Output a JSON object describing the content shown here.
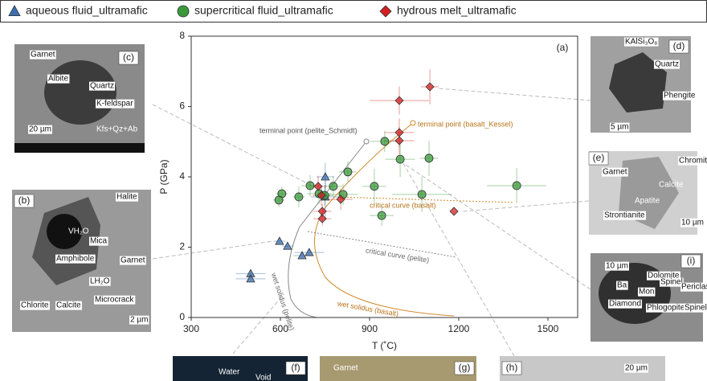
{
  "chart_data": {
    "type": "scatter",
    "xlabel": "T (˚C)",
    "ylabel": "P (GPa)",
    "xlim": [
      300,
      1600
    ],
    "ylim": [
      0,
      8
    ],
    "xticks": [
      300,
      600,
      900,
      1200,
      1500
    ],
    "yticks": [
      0,
      2,
      4,
      6,
      8
    ],
    "annotations": [
      "(a)",
      "terminal point (pelite_Schmidt)",
      "terminal point (basalt_Kessel)",
      "critical curve (basalt)",
      "critical curve (pelite)",
      "wet solidus (pelite)",
      "wet solidus (basalt)"
    ],
    "series": [
      {
        "name": "aqueous fluid_ultramafic",
        "color": "#3a6fb0",
        "marker": "triangle",
        "x": [
          500,
          500,
          597,
          624,
          673,
          697,
          751,
          751
        ],
        "y": [
          1.25,
          1.1,
          2.17,
          2.03,
          1.76,
          1.85,
          3.43,
          4.0
        ],
        "xerr": [
          50,
          50,
          20,
          20,
          30,
          50,
          50,
          30
        ],
        "yerr": [
          0.1,
          0.1,
          0.05,
          0.05,
          0.1,
          0.1,
          0.6,
          0.4
        ]
      },
      {
        "name": "supercritical fluid_ultramafic",
        "color": "#3a9a3a",
        "marker": "circle",
        "x": [
          605,
          595,
          662,
          700,
          730,
          749,
          778,
          811,
          827,
          916,
          941,
          951,
          1003,
          1076,
          1100,
          1395
        ],
        "y": [
          3.52,
          3.34,
          3.43,
          3.75,
          3.52,
          3.47,
          3.73,
          3.5,
          4.14,
          3.73,
          2.9,
          5.01,
          4.5,
          3.5,
          4.53,
          3.75
        ],
        "xerr": [
          20,
          20,
          20,
          30,
          40,
          30,
          30,
          50,
          30,
          40,
          40,
          50,
          50,
          100,
          30,
          100
        ],
        "yerr": [
          0.2,
          0.2,
          0.3,
          0.3,
          0.3,
          0.3,
          0.3,
          0.3,
          0.3,
          0.5,
          0.3,
          0.3,
          0.5,
          0.5,
          0.5,
          0.5
        ]
      },
      {
        "name": "hydrous melt_ultramafic",
        "color": "#d42020",
        "marker": "diamond",
        "x": [
          727,
          738,
          803,
          741,
          741,
          1000,
          1000,
          1000,
          1103,
          1184
        ],
        "y": [
          3.73,
          3.47,
          3.36,
          2.81,
          3.02,
          6.17,
          5.26,
          5.03,
          6.56,
          3.02
        ],
        "xerr": [
          30,
          30,
          40,
          30,
          30,
          100,
          50,
          50,
          30,
          0
        ],
        "yerr": [
          0.3,
          0.3,
          0.3,
          0.2,
          0.2,
          0.4,
          0.4,
          0.4,
          0.5,
          0
        ]
      }
    ]
  },
  "insets": [
    {
      "panel": "(c)",
      "labels": [
        "Garnet",
        "Albite",
        "Quartz",
        "K-feldspar",
        "20 µm",
        "Kfs+Qz+Ab"
      ]
    },
    {
      "panel": "(b)",
      "labels": [
        "Halite",
        "VH₂O",
        "Mica",
        "Amphibole",
        "Garnet",
        "LH₂O",
        "Chlorite",
        "Calcite",
        "Microcrack",
        "2 µm"
      ]
    },
    {
      "panel": "(d)",
      "labels": [
        "KAlSi₃O₈",
        "Quartz",
        "Phengite",
        "5 µm"
      ]
    },
    {
      "panel": "(e)",
      "labels": [
        "Chromite",
        "Garnet",
        "Calcite",
        "Apatite",
        "Strontianite",
        "10 µm"
      ]
    },
    {
      "panel": "(i)",
      "labels": [
        "10 µm",
        "Dolomite",
        "Ba",
        "Mon",
        "Spinel",
        "Periclase",
        "Diamond",
        "Phlogopite",
        "Spinel"
      ]
    },
    {
      "panel": "(f)",
      "labels": [
        "Water",
        "Void"
      ]
    },
    {
      "panel": "(g)",
      "labels": [
        "Garnet"
      ]
    },
    {
      "panel": "(h)",
      "labels": [
        "20 µm"
      ]
    }
  ]
}
